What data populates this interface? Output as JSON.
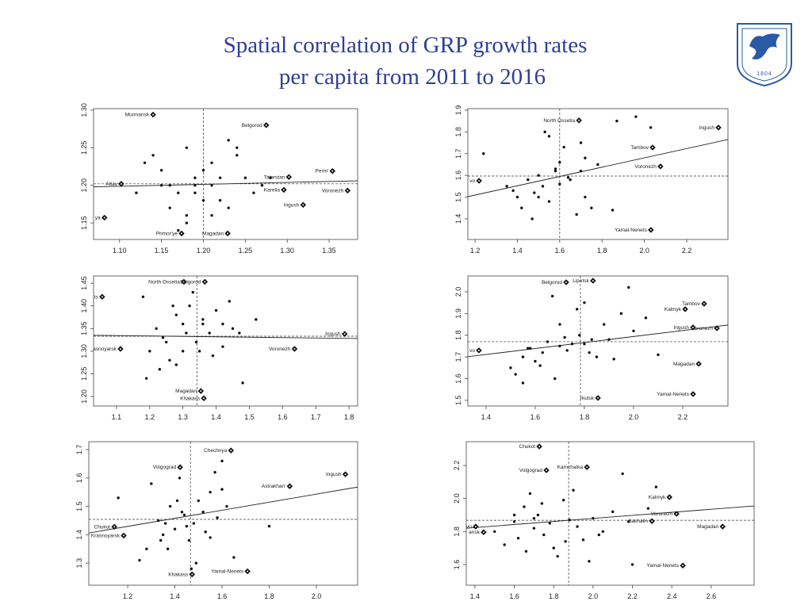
{
  "title_lines": [
    "Spatial correlation of GRP growth rates",
    "per capita from 2011 to 2016"
  ],
  "logo_text": "1804",
  "chart_data": [
    {
      "type": "scatter",
      "xlim": [
        1.069,
        1.384
      ],
      "ylim": [
        1.128,
        1.302
      ],
      "xticks": [
        {
          "value": 1.1,
          "label": "1.10"
        },
        1.15,
        {
          "value": 1.2,
          "label": "1.20"
        },
        1.25,
        {
          "value": 1.3,
          "label": "1.30"
        },
        1.35
      ],
      "yticks": [
        {
          "value": 1.3,
          "label": "1.30"
        },
        1.25,
        {
          "value": 1.2,
          "label": "1.20"
        },
        1.15
      ],
      "x_mean": 1.2,
      "y_mean": 1.202,
      "fit_line": {
        "x": [
          1.069,
          1.384
        ],
        "y": [
          1.198,
          1.206
        ]
      },
      "series": [
        {
          "marker": "diamond",
          "color": "#111111",
          "labels": [
            "Murmansk",
            "Belgorod",
            "Tatarstan",
            "Perm'",
            "Altay",
            "Karelia",
            "Voronezh",
            "Ingush",
            "ya",
            "Primor'ye",
            "Magadan"
          ],
          "x": [
            1.14,
            1.275,
            1.302,
            1.354,
            1.102,
            1.296,
            1.372,
            1.319,
            1.082,
            1.174,
            1.229
          ],
          "y": [
            1.294,
            1.28,
            1.211,
            1.219,
            1.202,
            1.194,
            1.193,
            1.174,
            1.157,
            1.136,
            1.136
          ]
        },
        {
          "marker": "dot",
          "color": "#111111",
          "x": [
            1.13,
            1.14,
            1.15,
            1.16,
            1.17,
            1.18,
            1.19,
            1.2,
            1.21,
            1.22,
            1.23,
            1.24,
            1.25,
            1.26,
            1.27,
            1.16,
            1.18,
            1.19,
            1.21,
            1.22,
            1.23,
            1.15,
            1.17,
            1.2,
            1.24,
            1.28,
            1.12,
            1.18,
            1.21,
            1.19
          ],
          "y": [
            1.23,
            1.24,
            1.22,
            1.2,
            1.19,
            1.25,
            1.21,
            1.22,
            1.2,
            1.18,
            1.26,
            1.24,
            1.21,
            1.19,
            1.2,
            1.17,
            1.15,
            1.19,
            1.23,
            1.21,
            1.17,
            1.2,
            1.14,
            1.18,
            1.25,
            1.21,
            1.19,
            1.16,
            1.16,
            1.2
          ]
        }
      ]
    },
    {
      "type": "scatter",
      "xlim": [
        1.166,
        2.395
      ],
      "ylim": [
        1.305,
        1.907
      ],
      "xticks": [
        1.2,
        1.4,
        1.6,
        1.8,
        {
          "value": 2.0,
          "label": "2.0"
        },
        2.2
      ],
      "yticks": [
        1.9,
        1.8,
        1.7,
        1.6,
        1.5,
        1.4
      ],
      "x_mean": 1.6,
      "y_mean": 1.597,
      "fit_line": {
        "x": [
          1.166,
          2.395
        ],
        "y": [
          1.502,
          1.765
        ]
      },
      "series": [
        {
          "marker": "diamond",
          "color": "#111111",
          "labels": [
            "North Ossetia",
            "Ingush",
            "Tambov",
            "Voronezh",
            "vo",
            "Yamal-Nenets"
          ],
          "x": [
            1.691,
            2.35,
            2.039,
            2.076,
            1.219,
            2.031
          ],
          "y": [
            1.853,
            1.82,
            1.728,
            1.641,
            1.575,
            1.349
          ]
        },
        {
          "marker": "dot",
          "color": "#111111",
          "x": [
            1.96,
            1.87,
            2.03,
            1.24,
            1.35,
            1.4,
            1.45,
            1.48,
            1.5,
            1.52,
            1.55,
            1.58,
            1.6,
            1.62,
            1.65,
            1.7,
            1.72,
            1.75,
            1.78,
            1.53,
            1.55,
            1.47,
            1.42,
            1.6,
            1.68,
            1.72,
            1.85,
            1.38,
            1.5,
            1.64,
            1.58,
            1.7
          ],
          "y": [
            1.87,
            1.85,
            1.82,
            1.7,
            1.55,
            1.5,
            1.58,
            1.52,
            1.6,
            1.55,
            1.78,
            1.62,
            1.66,
            1.73,
            1.58,
            1.62,
            1.5,
            1.45,
            1.65,
            1.8,
            1.48,
            1.4,
            1.45,
            1.56,
            1.42,
            1.68,
            1.44,
            1.53,
            1.5,
            1.59,
            1.63,
            1.75
          ]
        }
      ]
    },
    {
      "type": "scatter",
      "xlim": [
        1.031,
        1.826
      ],
      "ylim": [
        1.179,
        1.466
      ],
      "xticks": [
        1.1,
        1.2,
        1.3,
        1.4,
        1.5,
        1.6,
        1.7,
        1.8
      ],
      "yticks": [
        1.45,
        {
          "value": 1.4,
          "label": "1.40"
        },
        1.35,
        {
          "value": 1.3,
          "label": "1.30"
        },
        1.25,
        {
          "value": 1.2,
          "label": "1.20"
        }
      ],
      "x_mean": 1.342,
      "y_mean": 1.333,
      "fit_line": {
        "x": [
          1.031,
          1.826
        ],
        "y": [
          1.335,
          1.328
        ]
      },
      "series": [
        {
          "marker": "diamond",
          "color": "#111111",
          "labels": [
            "North Ossetia",
            "Belgorod",
            "ts",
            "Ingush",
            "asnoyarsk",
            "Voronezh",
            "Magadan",
            "Khakass"
          ],
          "x": [
            1.303,
            1.366,
            1.057,
            1.787,
            1.112,
            1.636,
            1.354,
            1.363
          ],
          "y": [
            1.453,
            1.453,
            1.42,
            1.338,
            1.305,
            1.305,
            1.212,
            1.196
          ]
        },
        {
          "marker": "dot",
          "color": "#111111",
          "x": [
            1.18,
            1.2,
            1.22,
            1.24,
            1.26,
            1.28,
            1.3,
            1.32,
            1.34,
            1.36,
            1.38,
            1.4,
            1.42,
            1.44,
            1.3,
            1.28,
            1.33,
            1.36,
            1.39,
            1.25,
            1.23,
            1.45,
            1.48,
            1.52,
            1.47,
            1.19,
            1.31,
            1.35,
            1.42,
            1.27
          ],
          "y": [
            1.42,
            1.3,
            1.35,
            1.33,
            1.28,
            1.38,
            1.36,
            1.4,
            1.32,
            1.37,
            1.34,
            1.39,
            1.31,
            1.41,
            1.3,
            1.27,
            1.43,
            1.36,
            1.29,
            1.32,
            1.26,
            1.35,
            1.23,
            1.37,
            1.34,
            1.24,
            1.34,
            1.3,
            1.36,
            1.4
          ]
        }
      ]
    },
    {
      "type": "scatter",
      "xlim": [
        1.326,
        2.384
      ],
      "ylim": [
        1.474,
        2.073
      ],
      "xticks": [
        1.4,
        1.6,
        1.8,
        {
          "value": 2.0,
          "label": "2.0"
        },
        2.2
      ],
      "yticks": [
        {
          "value": 2.0,
          "label": "2.0"
        },
        1.9,
        1.8,
        1.7,
        1.6,
        1.5
      ],
      "x_mean": 1.784,
      "y_mean": 1.77,
      "fit_line": {
        "x": [
          1.326,
          2.384
        ],
        "y": [
          1.701,
          1.847
        ]
      },
      "series": [
        {
          "marker": "diamond",
          "color": "#111111",
          "labels": [
            "Lipetsk",
            "Belgorod",
            "Tambov",
            "Kalmyk",
            "Ingush",
            "Voronezh",
            "vo",
            "Magadan",
            "Yamal-Nenets",
            "rkutsk"
          ],
          "x": [
            1.835,
            1.726,
            2.287,
            2.21,
            2.242,
            2.339,
            1.371,
            2.265,
            2.242,
            1.855
          ],
          "y": [
            2.051,
            2.044,
            1.945,
            1.92,
            1.836,
            1.832,
            1.73,
            1.668,
            1.529,
            1.511
          ]
        },
        {
          "marker": "dot",
          "color": "#111111",
          "x": [
            1.5,
            1.55,
            1.58,
            1.6,
            1.63,
            1.65,
            1.68,
            1.7,
            1.72,
            1.75,
            1.78,
            1.8,
            1.82,
            1.85,
            1.88,
            1.9,
            1.95,
            2.0,
            2.05,
            1.52,
            1.57,
            1.62,
            1.67,
            1.73,
            1.77,
            1.83,
            1.98,
            2.1,
            1.55,
            1.7,
            1.8,
            1.92
          ],
          "y": [
            1.65,
            1.7,
            1.74,
            1.68,
            1.72,
            1.77,
            1.6,
            1.75,
            1.79,
            1.76,
            1.8,
            1.95,
            1.72,
            1.7,
            1.85,
            1.78,
            1.9,
            1.82,
            1.88,
            1.62,
            1.74,
            1.66,
            1.98,
            1.73,
            1.92,
            1.78,
            2.02,
            1.71,
            1.58,
            1.85,
            1.76,
            1.69
          ]
        }
      ]
    },
    {
      "type": "scatter",
      "xlim": [
        1.035,
        2.175
      ],
      "ylim": [
        1.222,
        1.728
      ],
      "xticks": [
        1.2,
        1.4,
        1.6,
        1.8,
        {
          "value": 2.0,
          "label": "2.0"
        }
      ],
      "yticks": [
        1.7,
        1.6,
        1.5,
        1.4,
        1.3
      ],
      "x_mean": 1.466,
      "y_mean": 1.454,
      "fit_line": {
        "x": [
          1.035,
          2.175
        ],
        "y": [
          1.406,
          1.568
        ]
      },
      "series": [
        {
          "marker": "diamond",
          "color": "#111111",
          "labels": [
            "Chechnya",
            "Volgograd",
            "Ingush",
            "Astrakhan'",
            "Chukot",
            "Krasnoyarsk",
            "Yamal-Nenets",
            "Khakass"
          ],
          "x": [
            1.638,
            1.422,
            2.123,
            1.887,
            1.143,
            1.183,
            1.708,
            1.473
          ],
          "y": [
            1.697,
            1.638,
            1.613,
            1.571,
            1.428,
            1.397,
            1.271,
            1.26
          ]
        },
        {
          "marker": "dot",
          "color": "#111111",
          "x": [
            1.16,
            1.25,
            1.3,
            1.33,
            1.35,
            1.38,
            1.4,
            1.42,
            1.44,
            1.46,
            1.48,
            1.5,
            1.52,
            1.55,
            1.58,
            1.6,
            1.62,
            1.65,
            1.34,
            1.37,
            1.41,
            1.45,
            1.49,
            1.53,
            1.57,
            1.28,
            1.43,
            1.6,
            1.8,
            1.36,
            1.47,
            1.55
          ],
          "y": [
            1.53,
            1.31,
            1.58,
            1.45,
            1.4,
            1.5,
            1.42,
            1.6,
            1.47,
            1.38,
            1.44,
            1.52,
            1.48,
            1.55,
            1.46,
            1.66,
            1.5,
            1.32,
            1.38,
            1.35,
            1.52,
            1.43,
            1.3,
            1.41,
            1.62,
            1.35,
            1.48,
            1.56,
            1.43,
            1.44,
            1.28,
            1.39
          ]
        }
      ]
    },
    {
      "type": "scatter",
      "xlim": [
        1.356,
        2.818
      ],
      "ylim": [
        1.475,
        2.344
      ],
      "xticks": [
        1.4,
        1.6,
        1.8,
        {
          "value": 2.0,
          "label": "2.0"
        },
        2.2,
        2.4,
        2.6
      ],
      "yticks": [
        2.2,
        {
          "value": 2.0,
          "label": "2.0"
        },
        1.8,
        1.6
      ],
      "x_mean": 1.876,
      "y_mean": 1.868,
      "fit_line": {
        "x": [
          1.356,
          2.818
        ],
        "y": [
          1.82,
          1.955
        ]
      },
      "series": [
        {
          "marker": "diamond",
          "color": "#111111",
          "labels": [
            "Chukot",
            "Kamchatka",
            "Volgograd",
            "Kalmyk",
            "Voronezh",
            "Sakhalin",
            "Magadan",
            "vo",
            "ansk",
            "Yamal-Nenets"
          ],
          "x": [
            1.727,
            1.969,
            1.763,
            2.388,
            2.424,
            2.299,
            2.658,
            1.404,
            1.444,
            2.456
          ],
          "y": [
            2.315,
            2.19,
            2.171,
            2.008,
            1.907,
            1.863,
            1.83,
            1.83,
            1.796,
            1.594
          ]
        },
        {
          "marker": "dot",
          "color": "#111111",
          "x": [
            1.5,
            1.55,
            1.6,
            1.62,
            1.65,
            1.68,
            1.7,
            1.72,
            1.75,
            1.78,
            1.8,
            1.82,
            1.85,
            1.88,
            1.9,
            1.95,
            2.0,
            2.05,
            2.1,
            2.15,
            2.2,
            2.28,
            2.32,
            1.66,
            1.74,
            1.92,
            1.98,
            2.03,
            1.7,
            1.86,
            1.6,
            2.18
          ],
          "y": [
            1.8,
            1.72,
            1.86,
            1.76,
            1.95,
            2.03,
            1.82,
            1.9,
            1.78,
            1.85,
            1.7,
            1.65,
            1.99,
            1.87,
            2.05,
            1.75,
            1.88,
            1.8,
            1.92,
            2.15,
            1.6,
            1.94,
            2.07,
            1.68,
            1.97,
            1.83,
            1.62,
            1.78,
            1.88,
            1.74,
            1.9,
            1.86
          ]
        }
      ]
    }
  ]
}
